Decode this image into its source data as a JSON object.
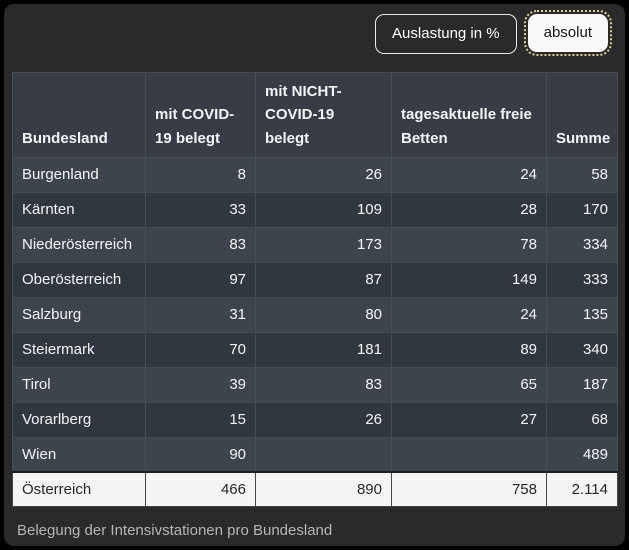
{
  "toolbar": {
    "buttons": [
      {
        "label": "Auslastung in %",
        "active": false
      },
      {
        "label": "absolut",
        "active": true
      }
    ]
  },
  "table": {
    "columns": [
      "Bundesland",
      "mit COVID-19 belegt",
      "mit NICHT-COVID-19 belegt",
      "tagesaktuelle freie Betten",
      "Summe"
    ],
    "rows": [
      [
        "Burgenland",
        "8",
        "26",
        "24",
        "58"
      ],
      [
        "Kärnten",
        "33",
        "109",
        "28",
        "170"
      ],
      [
        "Niederösterreich",
        "83",
        "173",
        "78",
        "334"
      ],
      [
        "Oberösterreich",
        "97",
        "87",
        "149",
        "333"
      ],
      [
        "Salzburg",
        "31",
        "80",
        "24",
        "135"
      ],
      [
        "Steiermark",
        "70",
        "181",
        "89",
        "340"
      ],
      [
        "Tirol",
        "39",
        "83",
        "65",
        "187"
      ],
      [
        "Vorarlberg",
        "15",
        "26",
        "27",
        "68"
      ],
      [
        "Wien",
        "90",
        "",
        "",
        "489"
      ]
    ],
    "footer": [
      "Österreich",
      "466",
      "890",
      "758",
      "2.114"
    ]
  },
  "caption": "Belegung der Intensivstationen pro Bundesland",
  "colors": {
    "page_background": "#2a2a2b",
    "header_background": "#373c46",
    "row_odd": "#3e444e",
    "row_even": "#31373f",
    "grid_line": "#474d57",
    "footer_background": "#f4f4f4",
    "footer_text": "#23272d",
    "text": "#f4f5f6",
    "caption_text": "#b5b6b8",
    "active_button_background": "#fafafa",
    "focus_ring": "#dbd092"
  },
  "chart_data": {
    "type": "table",
    "title": "Belegung der Intensivstationen pro Bundesland",
    "columns": [
      "Bundesland",
      "mit COVID-19 belegt",
      "mit NICHT-COVID-19 belegt",
      "tagesaktuelle freie Betten",
      "Summe"
    ],
    "rows": [
      {
        "bundesland": "Burgenland",
        "covid": 8,
        "nicht_covid": 26,
        "freie_betten": 24,
        "summe": 58
      },
      {
        "bundesland": "Kärnten",
        "covid": 33,
        "nicht_covid": 109,
        "freie_betten": 28,
        "summe": 170
      },
      {
        "bundesland": "Niederösterreich",
        "covid": 83,
        "nicht_covid": 173,
        "freie_betten": 78,
        "summe": 334
      },
      {
        "bundesland": "Oberösterreich",
        "covid": 97,
        "nicht_covid": 87,
        "freie_betten": 149,
        "summe": 333
      },
      {
        "bundesland": "Salzburg",
        "covid": 31,
        "nicht_covid": 80,
        "freie_betten": 24,
        "summe": 135
      },
      {
        "bundesland": "Steiermark",
        "covid": 70,
        "nicht_covid": 181,
        "freie_betten": 89,
        "summe": 340
      },
      {
        "bundesland": "Tirol",
        "covid": 39,
        "nicht_covid": 83,
        "freie_betten": 65,
        "summe": 187
      },
      {
        "bundesland": "Vorarlberg",
        "covid": 15,
        "nicht_covid": 26,
        "freie_betten": 27,
        "summe": 68
      },
      {
        "bundesland": "Wien",
        "covid": 90,
        "nicht_covid": null,
        "freie_betten": null,
        "summe": 489
      },
      {
        "bundesland": "Österreich",
        "covid": 466,
        "nicht_covid": 890,
        "freie_betten": 758,
        "summe": 2114
      }
    ],
    "view_mode_options": [
      "Auslastung in %",
      "absolut"
    ],
    "selected_view_mode": "absolut"
  }
}
